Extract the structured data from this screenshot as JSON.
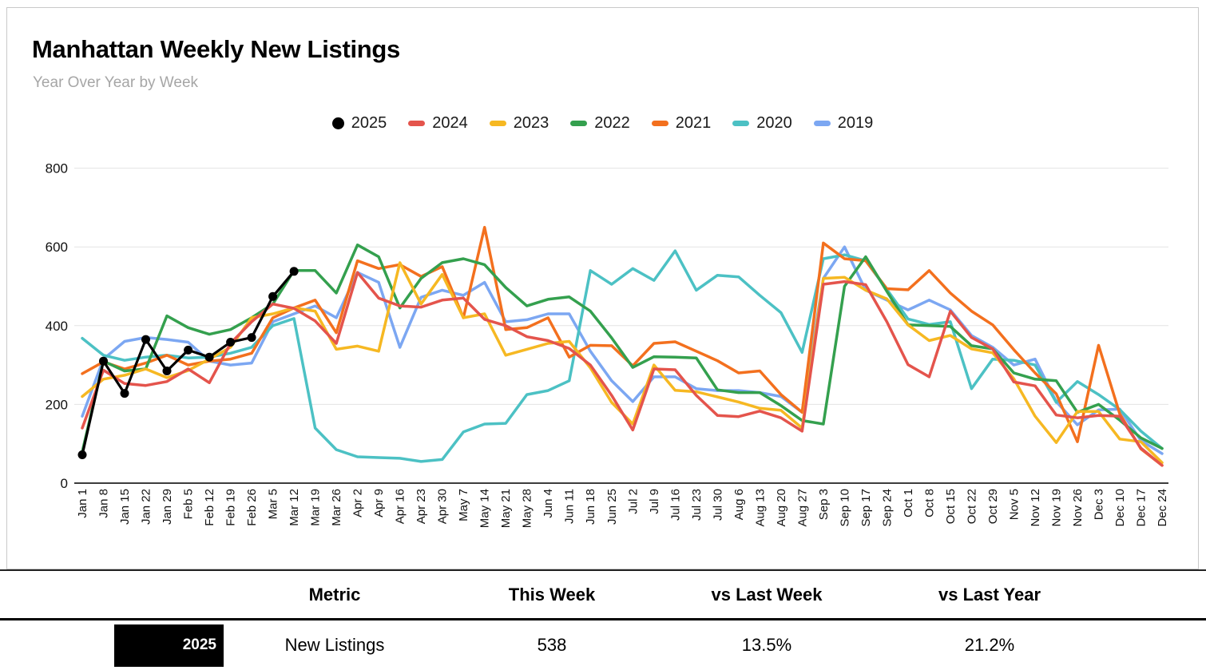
{
  "card": {
    "title": "Manhattan Weekly New Listings",
    "subtitle": "Year Over Year by Week"
  },
  "legend": [
    {
      "label": "2025",
      "color": "#000000",
      "marker": "circle"
    },
    {
      "label": "2024",
      "color": "#e4544c",
      "marker": "dash"
    },
    {
      "label": "2023",
      "color": "#f6b822",
      "marker": "dash"
    },
    {
      "label": "2022",
      "color": "#34a04e",
      "marker": "dash"
    },
    {
      "label": "2021",
      "color": "#f3701e",
      "marker": "dash"
    },
    {
      "label": "2020",
      "color": "#4cc1c4",
      "marker": "dash"
    },
    {
      "label": "2019",
      "color": "#7ca7f2",
      "marker": "dash"
    }
  ],
  "chart_data": {
    "type": "line",
    "title": "Manhattan Weekly New Listings",
    "subtitle": "Year Over Year by Week",
    "xlabel": "",
    "ylabel": "",
    "ylim": [
      0,
      800
    ],
    "yticks": [
      0,
      200,
      400,
      600,
      800
    ],
    "grid": true,
    "legend_position": "top",
    "x": [
      "Jan 1",
      "Jan 8",
      "Jan 15",
      "Jan 22",
      "Jan 29",
      "Feb 5",
      "Feb 12",
      "Feb 19",
      "Feb 26",
      "Mar 5",
      "Mar 12",
      "Mar 19",
      "Mar 26",
      "Apr 2",
      "Apr 9",
      "Apr 16",
      "Apr 23",
      "Apr 30",
      "May 7",
      "May 14",
      "May 21",
      "May 28",
      "Jun 4",
      "Jun 11",
      "Jun 18",
      "Jun 25",
      "Jul 2",
      "Jul 9",
      "Jul 16",
      "Jul 23",
      "Jul 30",
      "Aug 6",
      "Aug 13",
      "Aug 20",
      "Aug 27",
      "Sep 3",
      "Sep 10",
      "Sep 17",
      "Sep 24",
      "Oct 1",
      "Oct 8",
      "Oct 15",
      "Oct 22",
      "Oct 29",
      "Nov 5",
      "Nov 12",
      "Nov 19",
      "Nov 26",
      "Dec 3",
      "Dec 10",
      "Dec 17",
      "Dec 24"
    ],
    "series": [
      {
        "name": "2025",
        "color": "#000000",
        "marker": "circle",
        "values": [
          72,
          310,
          228,
          365,
          285,
          338,
          320,
          358,
          370,
          474,
          538,
          null,
          null,
          null,
          null,
          null,
          null,
          null,
          null,
          null,
          null,
          null,
          null,
          null,
          null,
          null,
          null,
          null,
          null,
          null,
          null,
          null,
          null,
          null,
          null,
          null,
          null,
          null,
          null,
          null,
          null,
          null,
          null,
          null,
          null,
          null,
          null,
          null,
          null,
          null,
          null,
          null
        ]
      },
      {
        "name": "2024",
        "color": "#e4544c",
        "marker": "none",
        "values": [
          140,
          287,
          253,
          248,
          258,
          290,
          255,
          355,
          410,
          455,
          444,
          412,
          355,
          535,
          470,
          450,
          447,
          465,
          470,
          416,
          400,
          372,
          362,
          342,
          300,
          223,
          135,
          290,
          288,
          223,
          172,
          169,
          183,
          166,
          132,
          505,
          512,
          504,
          410,
          301,
          270,
          437,
          370,
          341,
          257,
          247,
          173,
          166,
          172,
          170,
          89,
          45
        ]
      },
      {
        "name": "2023",
        "color": "#f6b822",
        "marker": "none",
        "values": [
          220,
          264,
          274,
          290,
          268,
          286,
          315,
          345,
          420,
          430,
          445,
          437,
          340,
          348,
          335,
          560,
          455,
          530,
          420,
          430,
          325,
          340,
          355,
          360,
          293,
          205,
          150,
          300,
          236,
          232,
          219,
          206,
          190,
          185,
          140,
          520,
          523,
          490,
          468,
          402,
          362,
          375,
          341,
          331,
          265,
          170,
          103,
          182,
          182,
          112,
          105,
          52
        ]
      },
      {
        "name": "2022",
        "color": "#34a04e",
        "marker": "none",
        "values": [
          80,
          310,
          285,
          290,
          425,
          395,
          378,
          390,
          420,
          455,
          540,
          540,
          483,
          605,
          575,
          445,
          520,
          560,
          570,
          555,
          497,
          450,
          467,
          473,
          437,
          369,
          294,
          321,
          320,
          318,
          237,
          230,
          230,
          197,
          159,
          150,
          500,
          575,
          487,
          402,
          400,
          398,
          349,
          341,
          280,
          264,
          260,
          180,
          200,
          160,
          115,
          88
        ]
      },
      {
        "name": "2021",
        "color": "#f3701e",
        "marker": "none",
        "values": [
          278,
          308,
          290,
          305,
          325,
          300,
          310,
          315,
          330,
          420,
          445,
          465,
          382,
          565,
          545,
          555,
          525,
          550,
          420,
          650,
          390,
          395,
          420,
          320,
          350,
          349,
          298,
          355,
          359,
          335,
          311,
          280,
          285,
          225,
          180,
          610,
          570,
          565,
          494,
          491,
          540,
          483,
          437,
          402,
          339,
          280,
          227,
          105,
          350,
          176,
          87,
          45
        ]
      },
      {
        "name": "2020",
        "color": "#4cc1c4",
        "marker": "none",
        "values": [
          368,
          325,
          312,
          320,
          325,
          318,
          320,
          330,
          345,
          400,
          418,
          140,
          85,
          67,
          65,
          63,
          55,
          60,
          130,
          150,
          152,
          225,
          235,
          260,
          540,
          505,
          545,
          515,
          590,
          490,
          528,
          524,
          477,
          433,
          332,
          570,
          580,
          565,
          492,
          417,
          403,
          410,
          240,
          315,
          312,
          300,
          205,
          258,
          225,
          187,
          132,
          88
        ]
      },
      {
        "name": "2019",
        "color": "#7ca7f2",
        "marker": "none",
        "values": [
          170,
          315,
          360,
          370,
          365,
          358,
          310,
          300,
          305,
          410,
          430,
          450,
          420,
          535,
          510,
          345,
          472,
          490,
          477,
          510,
          410,
          415,
          430,
          430,
          335,
          260,
          207,
          270,
          270,
          240,
          235,
          235,
          230,
          220,
          180,
          520,
          600,
          490,
          465,
          440,
          465,
          440,
          375,
          345,
          300,
          315,
          207,
          148,
          186,
          188,
          108,
          75
        ]
      }
    ]
  },
  "table": {
    "headers": [
      "Metric",
      "This Week",
      "vs Last Week",
      "vs Last Year"
    ],
    "rows": [
      {
        "year": "2025",
        "metric": "New Listings",
        "this_week": "538",
        "vs_last_week": "13.5%",
        "vs_last_year": "21.2%"
      }
    ]
  },
  "colors": {
    "grid_line": "#e3e3e3",
    "axis_line": "#3c3c3c",
    "year_box_bg": "#000000",
    "year_box_text": "#ffffff"
  }
}
